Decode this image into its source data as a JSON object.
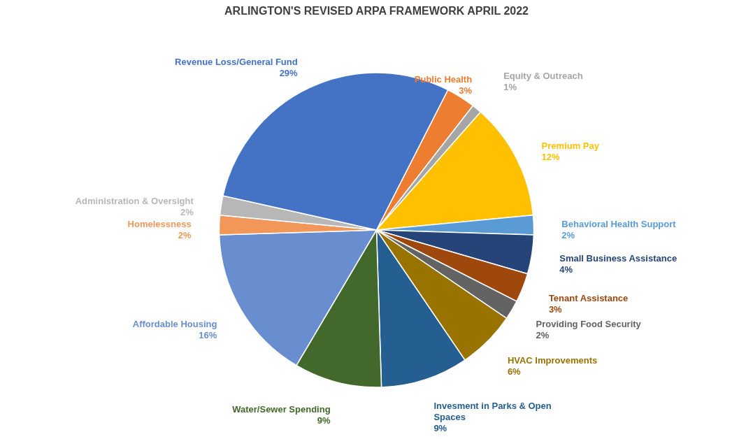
{
  "chart_data": {
    "type": "pie",
    "title": "ARLINGTON'S REVISED ARPA FRAMEWORK APRIL 2022",
    "categories": [
      "Public Health",
      "Equity & Outreach",
      "Premium Pay",
      "Behavioral Health Support",
      "Small Business Assistance",
      "Tenant Assistance",
      "Providing Food Security",
      "HVAC Improvements",
      "Invesment in Parks & Open Spaces",
      "Water/Sewer Spending",
      "Affordable Housing",
      "Homelessness",
      "Administration & Oversight",
      "Revenue Loss/General Fund"
    ],
    "values": [
      3,
      1,
      12,
      2,
      4,
      3,
      2,
      6,
      9,
      9,
      16,
      2,
      2,
      29
    ],
    "value_labels": [
      "3%",
      "1%",
      "12%",
      "2%",
      "4%",
      "3%",
      "2%",
      "6%",
      "9%",
      "9%",
      "16%",
      "2%",
      "2%",
      "29%"
    ],
    "colors": [
      "#ed7d31",
      "#a5a5a5",
      "#ffc000",
      "#5b9bd5",
      "#264478",
      "#9e480e",
      "#636363",
      "#997300",
      "#255e91",
      "#43682b",
      "#698ed0",
      "#f1975a",
      "#b7b7b7",
      "#4472c4"
    ]
  }
}
